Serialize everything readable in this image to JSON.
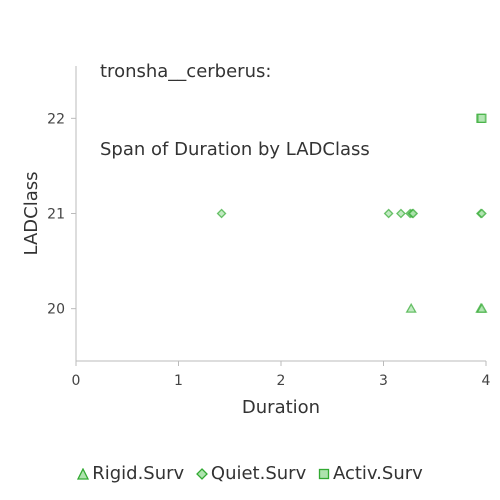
{
  "chart_data": {
    "type": "scatter",
    "title_lines": [
      "tronsha__cerberus:",
      "Span of Duration by LADClass"
    ],
    "xlabel": "Duration",
    "ylabel": "LADClass",
    "xlim": [
      0,
      4
    ],
    "ylim": [
      19.45,
      22.55
    ],
    "xticks": [
      0,
      1,
      2,
      3,
      4
    ],
    "yticks": [
      20,
      21,
      22
    ],
    "grid": false,
    "legend_position": "bottom",
    "colors": {
      "marker_stroke": "#33aa33",
      "marker_fill": "#aee3ae",
      "axis": "#bbbbbb"
    },
    "series": [
      {
        "name": "Rigid.Surv",
        "marker": "triangle",
        "points": [
          {
            "x": 3.27,
            "y": 20
          },
          {
            "x": 3.95,
            "y": 20
          },
          {
            "x": 3.96,
            "y": 20
          }
        ]
      },
      {
        "name": "Quiet.Surv",
        "marker": "diamond",
        "points": [
          {
            "x": 1.42,
            "y": 21
          },
          {
            "x": 3.05,
            "y": 21
          },
          {
            "x": 3.17,
            "y": 21
          },
          {
            "x": 3.26,
            "y": 21
          },
          {
            "x": 3.28,
            "y": 21
          },
          {
            "x": 3.29,
            "y": 21
          },
          {
            "x": 3.95,
            "y": 21
          },
          {
            "x": 3.96,
            "y": 21
          }
        ]
      },
      {
        "name": "Activ.Surv",
        "marker": "square",
        "points": [
          {
            "x": 3.95,
            "y": 22
          },
          {
            "x": 3.96,
            "y": 22
          }
        ]
      }
    ]
  }
}
